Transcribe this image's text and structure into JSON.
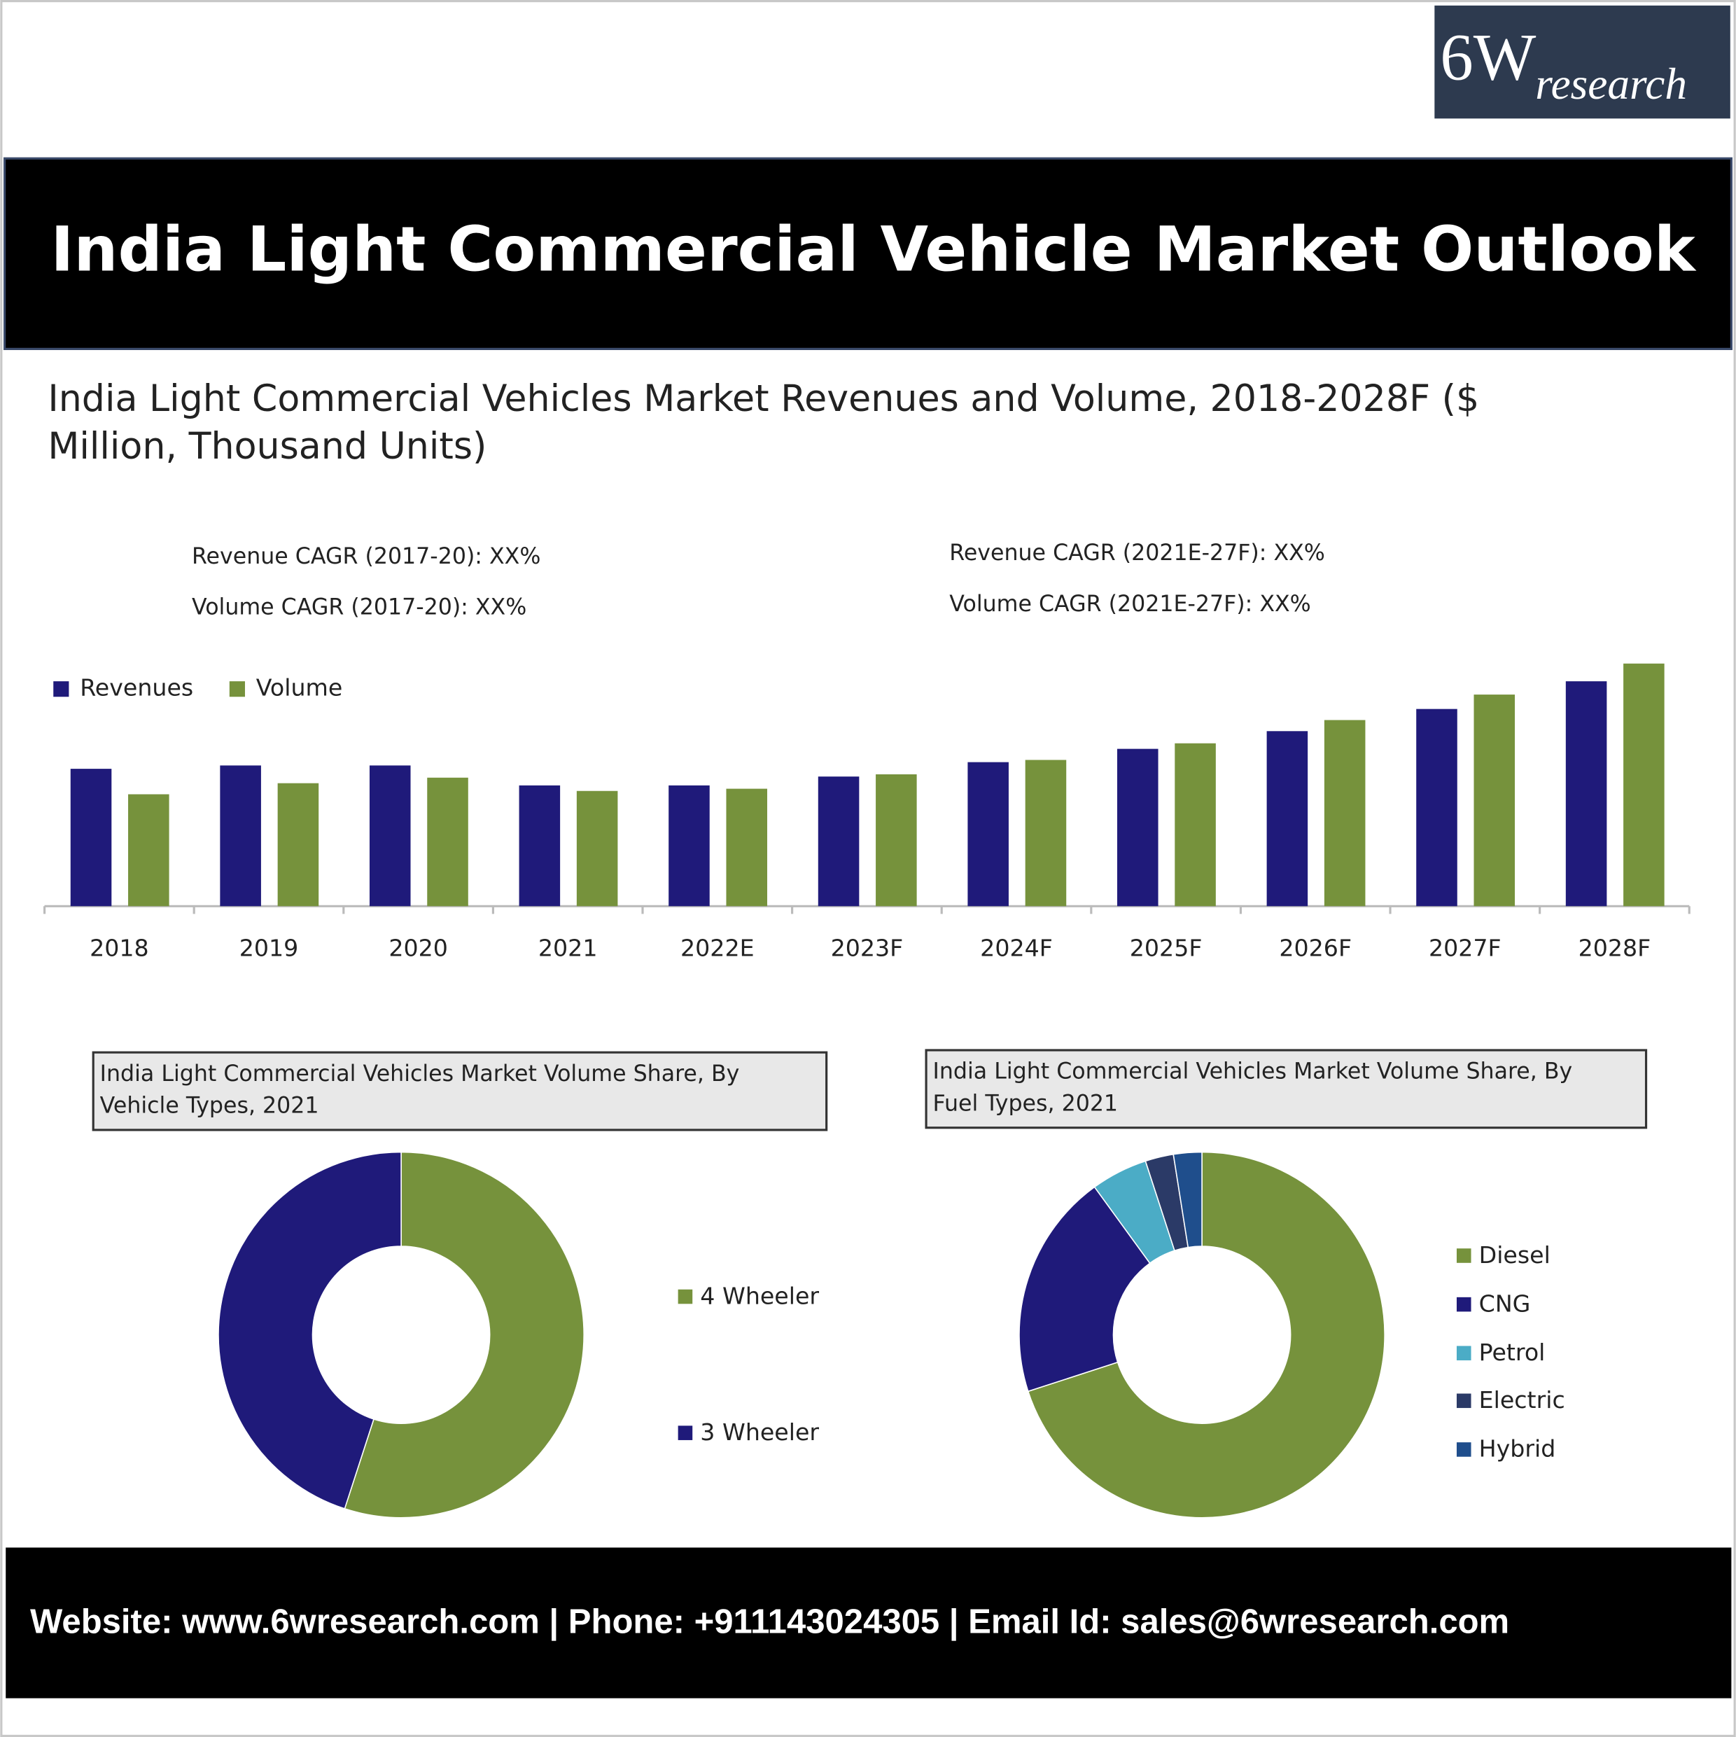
{
  "header": {
    "logo_main": "6W",
    "logo_sub": "research",
    "title": "India Light Commercial Vehicle Market Outlook"
  },
  "chart_data": [
    {
      "type": "bar",
      "title": [
        "India Light Commercial Vehicles Market Revenues and Volume, 2018-2028F  ($",
        "Million, Thousand Units)"
      ],
      "annotations": [
        "Revenue CAGR (2017-20): XX%",
        "Volume CAGR (2017-20): XX%",
        "Revenue CAGR (2021E-27F): XX%",
        "Volume CAGR (2021E-27F): XX%"
      ],
      "categories": [
        "2018",
        "2019",
        "2020",
        "2021",
        "2022E",
        "2023F",
        "2024F",
        "2025F",
        "2026F",
        "2027F",
        "2028F"
      ],
      "series": [
        {
          "name": "Revenues",
          "color": "#1f1a7a",
          "values": [
            124,
            127,
            127,
            109,
            109,
            117,
            130,
            142,
            158,
            178,
            203
          ]
        },
        {
          "name": "Volume",
          "color": "#76923c",
          "values": [
            101,
            111,
            116,
            104,
            106,
            119,
            132,
            147,
            168,
            191,
            219
          ]
        }
      ],
      "ylim": [
        0,
        230
      ],
      "legend": "top-left"
    },
    {
      "type": "donut",
      "title": [
        "India Light Commercial Vehicles Market Volume Share, By",
        "Vehicle Types, 2021"
      ],
      "categories": [
        "4 Wheeler",
        "3 Wheeler"
      ],
      "values": [
        55,
        45
      ],
      "colors": [
        "#76923c",
        "#1f1a7a"
      ],
      "legend": "right"
    },
    {
      "type": "donut",
      "title": [
        "India Light Commercial Vehicles Market Volume Share, By",
        "Fuel Types, 2021"
      ],
      "categories": [
        "Diesel",
        "CNG",
        "Petrol",
        "Electric",
        "Hybrid"
      ],
      "values": [
        70,
        20,
        5,
        2.5,
        2.5
      ],
      "colors": [
        "#76923c",
        "#1f1a7a",
        "#4bacc6",
        "#2b3a67",
        "#1f4e8c"
      ],
      "legend": "right"
    }
  ],
  "footer": {
    "text": "Website: www.6wresearch.com | Phone: +911143024305 | Email Id: sales@6wresearch.com"
  }
}
